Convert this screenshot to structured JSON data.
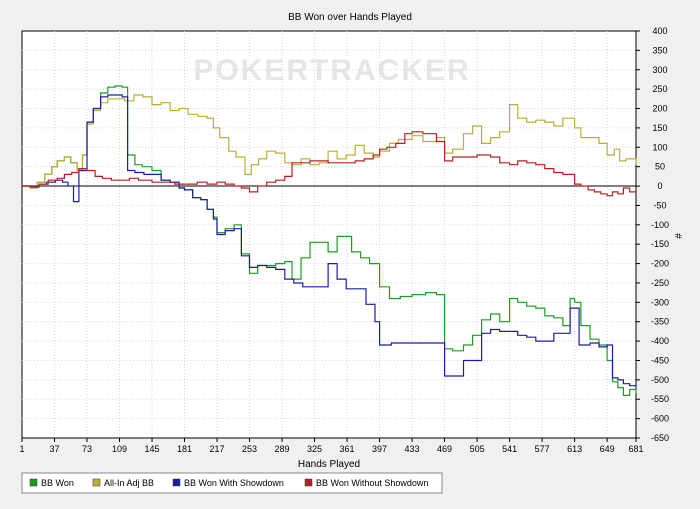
{
  "chart_data": {
    "type": "line",
    "title": "BB Won over Hands Played",
    "xlabel": "Hands Played",
    "ylabel": "#",
    "watermark": "POKERTRACKER",
    "xlim": [
      1,
      681
    ],
    "ylim": [
      -650,
      400
    ],
    "x_ticks": [
      1,
      37,
      73,
      109,
      145,
      181,
      217,
      253,
      289,
      325,
      361,
      397,
      433,
      469,
      505,
      541,
      577,
      613,
      649,
      681
    ],
    "y_ticks": [
      400,
      350,
      300,
      250,
      200,
      150,
      100,
      50,
      0,
      -50,
      -100,
      -150,
      -200,
      -250,
      -300,
      -350,
      -400,
      -450,
      -500,
      -550,
      -600,
      -650
    ],
    "grid": true,
    "legend_position": "bottom",
    "series": [
      {
        "name": "BB Won",
        "color": "#1e9e1e",
        "points": [
          [
            1,
            0
          ],
          [
            10,
            -5
          ],
          [
            18,
            10
          ],
          [
            26,
            30
          ],
          [
            34,
            50
          ],
          [
            40,
            65
          ],
          [
            48,
            75
          ],
          [
            55,
            60
          ],
          [
            62,
            40
          ],
          [
            68,
            80
          ],
          [
            73,
            165
          ],
          [
            80,
            200
          ],
          [
            88,
            240
          ],
          [
            96,
            255
          ],
          [
            104,
            258
          ],
          [
            112,
            255
          ],
          [
            118,
            80
          ],
          [
            126,
            55
          ],
          [
            134,
            50
          ],
          [
            145,
            40
          ],
          [
            155,
            15
          ],
          [
            165,
            10
          ],
          [
            175,
            -5
          ],
          [
            181,
            -10
          ],
          [
            190,
            -30
          ],
          [
            199,
            -35
          ],
          [
            206,
            -60
          ],
          [
            213,
            -80
          ],
          [
            217,
            -120
          ],
          [
            226,
            -110
          ],
          [
            236,
            -100
          ],
          [
            244,
            -175
          ],
          [
            253,
            -225
          ],
          [
            262,
            -205
          ],
          [
            272,
            -205
          ],
          [
            282,
            -200
          ],
          [
            292,
            -195
          ],
          [
            300,
            -240
          ],
          [
            310,
            -185
          ],
          [
            320,
            -145
          ],
          [
            330,
            -145
          ],
          [
            340,
            -170
          ],
          [
            350,
            -130
          ],
          [
            358,
            -130
          ],
          [
            366,
            -170
          ],
          [
            376,
            -185
          ],
          [
            386,
            -200
          ],
          [
            397,
            -260
          ],
          [
            408,
            -290
          ],
          [
            420,
            -285
          ],
          [
            433,
            -280
          ],
          [
            448,
            -275
          ],
          [
            460,
            -280
          ],
          [
            469,
            -420
          ],
          [
            478,
            -425
          ],
          [
            490,
            -410
          ],
          [
            500,
            -385
          ],
          [
            510,
            -345
          ],
          [
            520,
            -330
          ],
          [
            530,
            -350
          ],
          [
            541,
            -290
          ],
          [
            550,
            -300
          ],
          [
            560,
            -310
          ],
          [
            570,
            -315
          ],
          [
            580,
            -335
          ],
          [
            590,
            -340
          ],
          [
            600,
            -360
          ],
          [
            608,
            -290
          ],
          [
            613,
            -300
          ],
          [
            620,
            -360
          ],
          [
            630,
            -395
          ],
          [
            640,
            -410
          ],
          [
            649,
            -450
          ],
          [
            655,
            -505
          ],
          [
            661,
            -520
          ],
          [
            667,
            -540
          ],
          [
            674,
            -525
          ],
          [
            681,
            -535
          ]
        ]
      },
      {
        "name": "All-In Adj BB",
        "color": "#b8b030",
        "points": [
          [
            1,
            0
          ],
          [
            10,
            -5
          ],
          [
            18,
            10
          ],
          [
            26,
            30
          ],
          [
            34,
            50
          ],
          [
            40,
            65
          ],
          [
            48,
            75
          ],
          [
            55,
            60
          ],
          [
            62,
            40
          ],
          [
            68,
            80
          ],
          [
            73,
            160
          ],
          [
            80,
            195
          ],
          [
            88,
            215
          ],
          [
            96,
            225
          ],
          [
            104,
            225
          ],
          [
            115,
            220
          ],
          [
            125,
            235
          ],
          [
            135,
            230
          ],
          [
            145,
            210
          ],
          [
            155,
            215
          ],
          [
            165,
            195
          ],
          [
            175,
            200
          ],
          [
            185,
            185
          ],
          [
            196,
            180
          ],
          [
            206,
            175
          ],
          [
            213,
            150
          ],
          [
            220,
            125
          ],
          [
            230,
            90
          ],
          [
            238,
            75
          ],
          [
            248,
            30
          ],
          [
            255,
            55
          ],
          [
            263,
            70
          ],
          [
            272,
            90
          ],
          [
            282,
            85
          ],
          [
            292,
            60
          ],
          [
            300,
            55
          ],
          [
            310,
            70
          ],
          [
            320,
            55
          ],
          [
            330,
            60
          ],
          [
            340,
            90
          ],
          [
            350,
            70
          ],
          [
            360,
            80
          ],
          [
            370,
            105
          ],
          [
            380,
            85
          ],
          [
            390,
            75
          ],
          [
            397,
            90
          ],
          [
            408,
            110
          ],
          [
            418,
            120
          ],
          [
            433,
            130
          ],
          [
            445,
            115
          ],
          [
            460,
            125
          ],
          [
            469,
            85
          ],
          [
            478,
            95
          ],
          [
            490,
            135
          ],
          [
            500,
            155
          ],
          [
            510,
            110
          ],
          [
            520,
            125
          ],
          [
            530,
            140
          ],
          [
            541,
            210
          ],
          [
            550,
            175
          ],
          [
            560,
            165
          ],
          [
            570,
            170
          ],
          [
            580,
            165
          ],
          [
            590,
            155
          ],
          [
            600,
            175
          ],
          [
            613,
            150
          ],
          [
            620,
            125
          ],
          [
            630,
            125
          ],
          [
            640,
            110
          ],
          [
            649,
            80
          ],
          [
            657,
            95
          ],
          [
            663,
            65
          ],
          [
            670,
            70
          ],
          [
            681,
            55
          ]
        ]
      },
      {
        "name": "BB Won With Showdown",
        "color": "#1c1ca8",
        "points": [
          [
            1,
            0
          ],
          [
            12,
            0
          ],
          [
            20,
            5
          ],
          [
            28,
            10
          ],
          [
            38,
            15
          ],
          [
            46,
            10
          ],
          [
            52,
            0
          ],
          [
            58,
            -40
          ],
          [
            64,
            40
          ],
          [
            73,
            165
          ],
          [
            80,
            200
          ],
          [
            88,
            230
          ],
          [
            96,
            235
          ],
          [
            104,
            235
          ],
          [
            112,
            230
          ],
          [
            118,
            40
          ],
          [
            126,
            35
          ],
          [
            136,
            30
          ],
          [
            148,
            30
          ],
          [
            155,
            15
          ],
          [
            165,
            10
          ],
          [
            175,
            -5
          ],
          [
            181,
            -10
          ],
          [
            190,
            -30
          ],
          [
            199,
            -35
          ],
          [
            206,
            -60
          ],
          [
            213,
            -85
          ],
          [
            217,
            -125
          ],
          [
            226,
            -115
          ],
          [
            236,
            -110
          ],
          [
            244,
            -180
          ],
          [
            253,
            -210
          ],
          [
            262,
            -205
          ],
          [
            272,
            -210
          ],
          [
            282,
            -215
          ],
          [
            292,
            -240
          ],
          [
            302,
            -250
          ],
          [
            312,
            -260
          ],
          [
            322,
            -260
          ],
          [
            332,
            -260
          ],
          [
            340,
            -200
          ],
          [
            350,
            -240
          ],
          [
            360,
            -265
          ],
          [
            372,
            -265
          ],
          [
            382,
            -305
          ],
          [
            392,
            -350
          ],
          [
            397,
            -410
          ],
          [
            410,
            -405
          ],
          [
            425,
            -405
          ],
          [
            440,
            -405
          ],
          [
            455,
            -405
          ],
          [
            469,
            -490
          ],
          [
            480,
            -490
          ],
          [
            490,
            -450
          ],
          [
            500,
            -450
          ],
          [
            510,
            -380
          ],
          [
            520,
            -370
          ],
          [
            530,
            -375
          ],
          [
            541,
            -375
          ],
          [
            550,
            -385
          ],
          [
            560,
            -390
          ],
          [
            570,
            -400
          ],
          [
            580,
            -400
          ],
          [
            590,
            -380
          ],
          [
            600,
            -380
          ],
          [
            608,
            -315
          ],
          [
            613,
            -315
          ],
          [
            618,
            -410
          ],
          [
            630,
            -405
          ],
          [
            640,
            -415
          ],
          [
            649,
            -410
          ],
          [
            655,
            -495
          ],
          [
            661,
            -500
          ],
          [
            667,
            -510
          ],
          [
            674,
            -515
          ],
          [
            681,
            -520
          ]
        ]
      },
      {
        "name": "BB Won Without Showdown",
        "color": "#b82020",
        "points": [
          [
            1,
            0
          ],
          [
            10,
            -3
          ],
          [
            20,
            5
          ],
          [
            30,
            15
          ],
          [
            40,
            20
          ],
          [
            48,
            30
          ],
          [
            56,
            35
          ],
          [
            64,
            45
          ],
          [
            73,
            40
          ],
          [
            82,
            25
          ],
          [
            90,
            20
          ],
          [
            100,
            15
          ],
          [
            110,
            15
          ],
          [
            120,
            20
          ],
          [
            130,
            15
          ],
          [
            145,
            10
          ],
          [
            155,
            10
          ],
          [
            170,
            5
          ],
          [
            181,
            5
          ],
          [
            195,
            10
          ],
          [
            206,
            5
          ],
          [
            217,
            10
          ],
          [
            226,
            5
          ],
          [
            236,
            0
          ],
          [
            244,
            -5
          ],
          [
            253,
            -15
          ],
          [
            262,
            0
          ],
          [
            272,
            10
          ],
          [
            282,
            15
          ],
          [
            292,
            25
          ],
          [
            300,
            60
          ],
          [
            310,
            60
          ],
          [
            320,
            65
          ],
          [
            330,
            65
          ],
          [
            340,
            60
          ],
          [
            350,
            60
          ],
          [
            360,
            60
          ],
          [
            370,
            65
          ],
          [
            380,
            70
          ],
          [
            390,
            80
          ],
          [
            397,
            95
          ],
          [
            405,
            100
          ],
          [
            415,
            110
          ],
          [
            425,
            135
          ],
          [
            433,
            140
          ],
          [
            445,
            135
          ],
          [
            460,
            115
          ],
          [
            469,
            65
          ],
          [
            478,
            75
          ],
          [
            490,
            75
          ],
          [
            505,
            80
          ],
          [
            520,
            75
          ],
          [
            530,
            60
          ],
          [
            541,
            55
          ],
          [
            550,
            65
          ],
          [
            560,
            60
          ],
          [
            570,
            55
          ],
          [
            580,
            45
          ],
          [
            590,
            35
          ],
          [
            600,
            30
          ],
          [
            613,
            5
          ],
          [
            620,
            0
          ],
          [
            628,
            -10
          ],
          [
            635,
            -15
          ],
          [
            642,
            -20
          ],
          [
            649,
            -25
          ],
          [
            655,
            -15
          ],
          [
            661,
            -20
          ],
          [
            667,
            -5
          ],
          [
            674,
            -15
          ],
          [
            681,
            -15
          ]
        ]
      }
    ]
  }
}
